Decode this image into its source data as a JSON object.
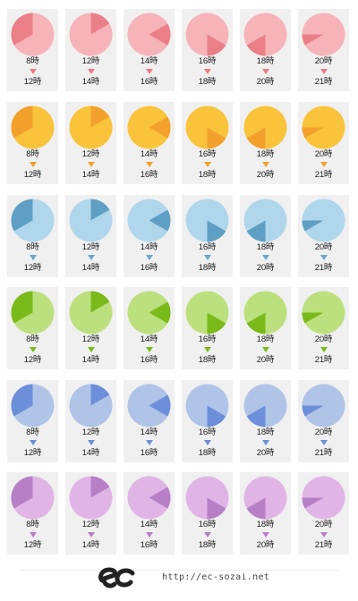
{
  "themes": [
    {
      "name": "red",
      "light": "#f6b3b8",
      "dark": "#ea7f87",
      "arrow": "#ee7a84"
    },
    {
      "name": "orange",
      "light": "#f9c43c",
      "dark": "#f3a12c",
      "arrow": "#f0a02a"
    },
    {
      "name": "blue",
      "light": "#b0d6eb",
      "dark": "#5f9fc4",
      "arrow": "#6aa7cb"
    },
    {
      "name": "green",
      "light": "#bde07f",
      "dark": "#7ab91a",
      "arrow": "#7ab91a"
    },
    {
      "name": "indigo",
      "light": "#b0c4e8",
      "dark": "#6d8fda",
      "arrow": "#6d8fda"
    },
    {
      "name": "purple",
      "light": "#e0b5e6",
      "dark": "#b77fc6",
      "arrow": "#b77fc6"
    }
  ],
  "pairs": [
    {
      "from": "8時",
      "to": "12時",
      "start": 8,
      "end": 12
    },
    {
      "from": "12時",
      "to": "14時",
      "start": 12,
      "end": 14
    },
    {
      "from": "14時",
      "to": "16時",
      "start": 14,
      "end": 16
    },
    {
      "from": "16時",
      "to": "18時",
      "start": 16,
      "end": 18
    },
    {
      "from": "18時",
      "to": "20時",
      "start": 18,
      "end": 20
    },
    {
      "from": "20時",
      "to": "21時",
      "start": 20,
      "end": 21
    }
  ],
  "footer": {
    "logo_icon": "ec-logo-icon",
    "url": "http://ec-sozai.net"
  }
}
